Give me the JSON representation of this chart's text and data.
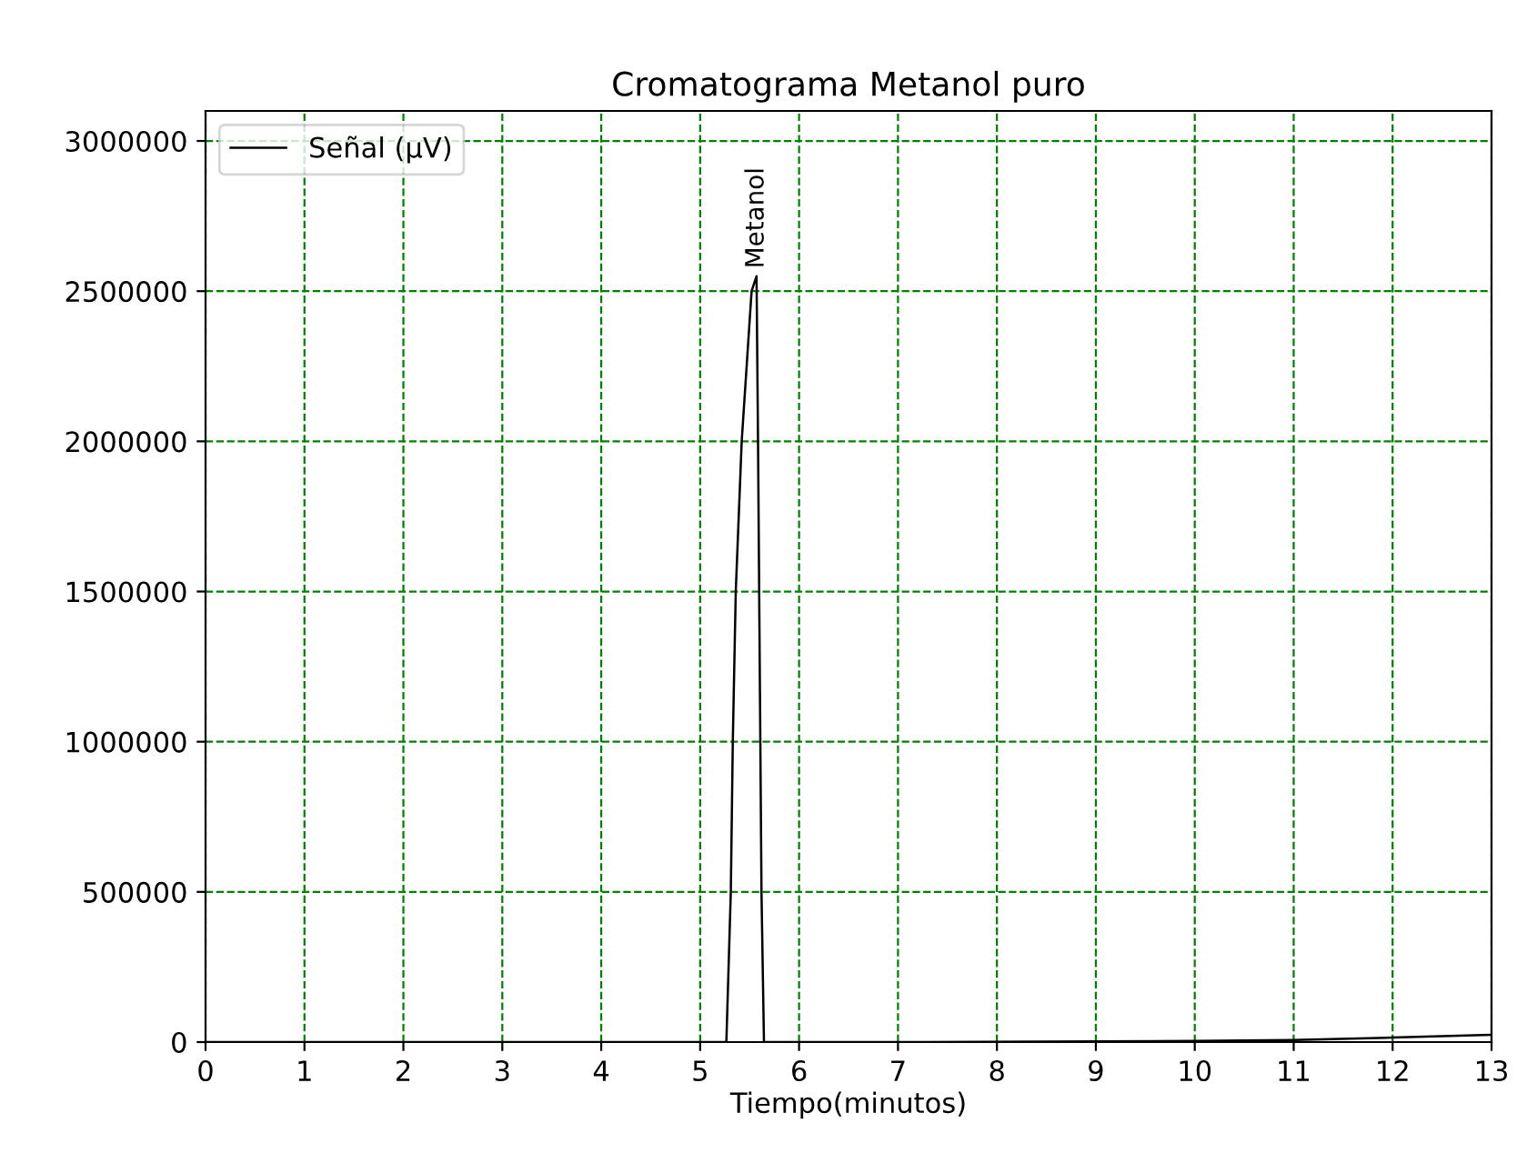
{
  "chart_data": {
    "type": "line",
    "title": "Cromatograma Metanol puro",
    "xlabel": "Tiempo(minutos)",
    "series": [
      {
        "name": "Señal (μV)",
        "color": "#000000",
        "x": [
          0,
          2,
          4,
          5,
          5.2,
          5.265,
          5.31,
          5.33,
          5.36,
          5.42,
          5.52,
          5.57,
          5.585,
          5.62,
          5.645,
          5.8,
          7,
          9,
          10,
          11,
          12,
          13
        ],
        "values": [
          0,
          0,
          0,
          0,
          0,
          0,
          500000,
          1000000,
          1500000,
          2000000,
          2500000,
          2550000,
          2000000,
          500000,
          0,
          0,
          0,
          2000,
          4000,
          7000,
          15000,
          24000
        ]
      }
    ],
    "annotations": [
      {
        "text": "Metanol",
        "x": 5.57,
        "y": 2550000
      }
    ],
    "xlim": [
      0,
      13
    ],
    "xticks": [
      0,
      1,
      2,
      3,
      4,
      5,
      6,
      7,
      8,
      9,
      10,
      11,
      12,
      13
    ],
    "ylim": [
      0,
      3100000
    ],
    "yticks": [
      0,
      500000,
      1000000,
      1500000,
      2000000,
      2500000,
      3000000
    ],
    "grid": true,
    "legend": "top left"
  }
}
